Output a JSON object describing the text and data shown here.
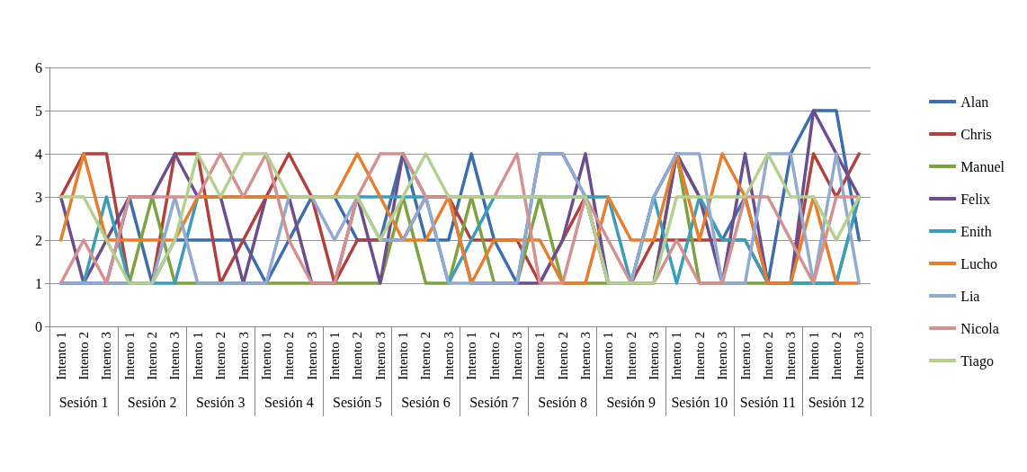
{
  "chart_data": {
    "type": "line",
    "categories": [
      "Intento 1",
      "Intento 2",
      "Intento 3",
      "Intento 1",
      "Intento 2",
      "Intento 3",
      "Intento 1",
      "Intento 2",
      "Intento 3",
      "Intento 1",
      "Intento 2",
      "Intento 3",
      "Intento 1",
      "Intento 2",
      "Intento 3",
      "Intento 1",
      "Intento 2",
      "Intento 3",
      "Intento 1",
      "Intento 2",
      "Intento 3",
      "Intento 1",
      "Intento 2",
      "Intento 3",
      "Intento 1",
      "Intento 2",
      "Intento 3",
      "Intento 1",
      "Intento 2",
      "Intento 3",
      "Intento 1",
      "Intento 2",
      "Intento 3",
      "Intento 1",
      "Intento 2",
      "Intento 3"
    ],
    "annotations": [
      "Sesión 1",
      "Sesión 2",
      "Sesión 3",
      "Sesión 4",
      "Sesión 5",
      "Sesión 6",
      "Sesión 7",
      "Sesión 8",
      "Sesión 9",
      "Sesión 10",
      "Sesión 11",
      "Sesión 12"
    ],
    "series": [
      {
        "name": "Alan",
        "color": "#3c6eac",
        "values": [
          1,
          1,
          1,
          3,
          1,
          2,
          2,
          2,
          2,
          1,
          2,
          3,
          3,
          2,
          2,
          4,
          2,
          2,
          4,
          2,
          1,
          4,
          4,
          3,
          1,
          1,
          3,
          4,
          3,
          2,
          3,
          1,
          4,
          5,
          5,
          2
        ]
      },
      {
        "name": "Chris",
        "color": "#b0413e",
        "values": [
          3,
          4,
          4,
          1,
          1,
          4,
          4,
          1,
          2,
          3,
          4,
          3,
          1,
          2,
          2,
          2,
          3,
          3,
          2,
          2,
          2,
          1,
          2,
          3,
          1,
          1,
          2,
          2,
          2,
          2,
          2,
          1,
          1,
          4,
          3,
          4
        ]
      },
      {
        "name": "Manuel",
        "color": "#7ea142",
        "values": [
          null,
          null,
          1,
          1,
          3,
          1,
          1,
          1,
          1,
          1,
          1,
          1,
          1,
          1,
          1,
          3,
          1,
          1,
          3,
          1,
          1,
          3,
          1,
          1,
          1,
          1,
          1,
          4,
          1,
          1,
          1,
          1,
          1,
          1,
          1,
          3
        ]
      },
      {
        "name": "Felix",
        "color": "#6c4e8c",
        "values": [
          3,
          1,
          2,
          3,
          3,
          4,
          3,
          3,
          1,
          3,
          3,
          1,
          1,
          3,
          1,
          4,
          3,
          3,
          1,
          1,
          1,
          1,
          2,
          4,
          1,
          1,
          1,
          4,
          3,
          1,
          4,
          1,
          1,
          5,
          4,
          3
        ]
      },
      {
        "name": "Enith",
        "color": "#3a9ebb",
        "values": [
          1,
          1,
          3,
          1,
          1,
          1,
          3,
          3,
          3,
          3,
          3,
          3,
          3,
          3,
          3,
          3,
          3,
          1,
          2,
          3,
          3,
          3,
          3,
          3,
          3,
          1,
          3,
          1,
          3,
          2,
          2,
          1,
          1,
          1,
          1,
          3
        ]
      },
      {
        "name": "Lucho",
        "color": "#e57e2e",
        "values": [
          2,
          4,
          2,
          2,
          2,
          2,
          3,
          3,
          3,
          3,
          3,
          3,
          3,
          4,
          3,
          2,
          2,
          3,
          1,
          2,
          2,
          2,
          1,
          1,
          3,
          2,
          2,
          4,
          2,
          4,
          3,
          1,
          1,
          3,
          1,
          1
        ]
      },
      {
        "name": "Lia",
        "color": "#92a9d0",
        "values": [
          1,
          1,
          1,
          1,
          1,
          3,
          1,
          1,
          1,
          1,
          3,
          3,
          2,
          3,
          2,
          2,
          3,
          1,
          1,
          1,
          1,
          4,
          4,
          3,
          1,
          1,
          3,
          4,
          4,
          1,
          1,
          4,
          4,
          1,
          4,
          1
        ]
      },
      {
        "name": "Nicola",
        "color": "#d3918f",
        "values": [
          1,
          2,
          1,
          3,
          3,
          3,
          3,
          4,
          3,
          4,
          2,
          1,
          1,
          3,
          4,
          4,
          3,
          3,
          3,
          3,
          4,
          1,
          1,
          3,
          2,
          1,
          1,
          2,
          1,
          1,
          3,
          3,
          2,
          1,
          3,
          3
        ]
      },
      {
        "name": "Tiago",
        "color": "#b4cf8f",
        "values": [
          3,
          3,
          2,
          1,
          1,
          2,
          4,
          3,
          4,
          4,
          3,
          3,
          3,
          3,
          2,
          3,
          4,
          3,
          3,
          3,
          3,
          3,
          3,
          3,
          1,
          1,
          1,
          3,
          3,
          3,
          3,
          4,
          3,
          3,
          2,
          3
        ]
      }
    ],
    "ylim": [
      0,
      6
    ],
    "yticks": [
      0,
      1,
      2,
      3,
      4,
      5,
      6
    ],
    "grid": "y",
    "legend": "right",
    "marker": "none",
    "line_style": "solid"
  }
}
